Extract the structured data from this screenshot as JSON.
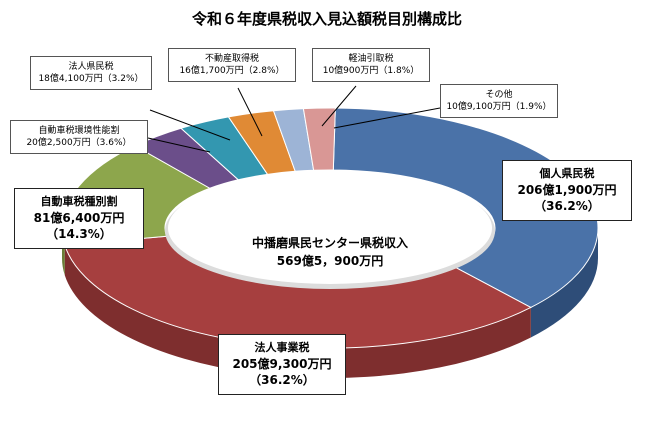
{
  "chart_data": {
    "type": "pie",
    "title": "令和６年度県税収入見込額税目別構成比",
    "center_label": "中播磨県民センター県税収入",
    "center_value": "569億5，900万円",
    "slices": [
      {
        "name": "個人県民税",
        "amount": "206億1,900万円",
        "percent_label": "（36.2%）",
        "value": 36.2,
        "color": "#4A72A8",
        "side": "#2E4D78"
      },
      {
        "name": "法人事業税",
        "amount": "205億9,300万円",
        "percent_label": "（36.2%）",
        "value": 36.2,
        "color": "#A63F3F",
        "side": "#7E2E2E"
      },
      {
        "name": "自動車税種別割",
        "amount": "81億6,400万円",
        "percent_label": "（14.3%）",
        "value": 14.3,
        "color": "#8DA64C",
        "side": "#6A7E37"
      },
      {
        "name": "自動車税環境性能割",
        "amount": "20億2,500万円",
        "percent_label": "（3.6%）",
        "value": 3.6,
        "color": "#6B4E8A",
        "side": "#4F3966"
      },
      {
        "name": "法人県民税",
        "amount": "18億4,100万円",
        "percent_label": "（3.2%）",
        "value": 3.2,
        "color": "#3397B0",
        "side": "#24707F"
      },
      {
        "name": "不動産取得税",
        "amount": "16億1,700万円",
        "percent_label": "（2.8%）",
        "value": 2.8,
        "color": "#E08A35",
        "side": "#A96624"
      },
      {
        "name": "軽油引取税",
        "amount": "10億900万円",
        "percent_label": "（1.8%）",
        "value": 1.8,
        "color": "#9DB4D6",
        "side": "#7688A3"
      },
      {
        "name": "その他",
        "amount": "10億9,100万円",
        "percent_label": "（1.9%）",
        "value": 1.9,
        "color": "#D99795",
        "side": "#A67270"
      }
    ]
  }
}
